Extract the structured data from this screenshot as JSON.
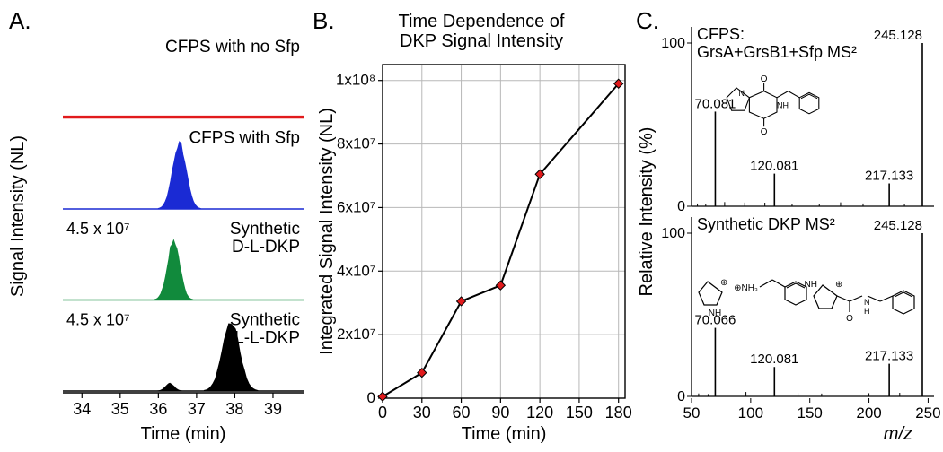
{
  "panelA": {
    "letter": "A.",
    "ylabel": "Signal Intensity (NL)",
    "xlabel": "Time (min)",
    "xlim": [
      33.5,
      39.8
    ],
    "xticks": [
      34,
      35,
      36,
      37,
      38,
      39
    ],
    "traces": [
      {
        "label": "CFPS with no Sfp",
        "scale_text": "",
        "color": "#e11a1c",
        "fill": false,
        "peak_center": null,
        "peak_width": 0,
        "peak_height": 0,
        "points": [
          [
            33.5,
            0.02
          ],
          [
            39.8,
            0.02
          ]
        ]
      },
      {
        "label": "CFPS with Sfp",
        "scale_text": "",
        "color": "#1a2ad4",
        "fill": true,
        "peak_center": 36.55,
        "peak_width": 0.55,
        "peak_height": 0.88
      },
      {
        "label": "Synthetic D-L-DKP",
        "scale_text": "4.5 x 10⁷",
        "color": "#118a3c",
        "fill": true,
        "peak_center": 36.4,
        "peak_width": 0.5,
        "peak_height": 0.78
      },
      {
        "label": "Synthetic L-L-DKP",
        "scale_text": "4.5 x 10⁷",
        "color": "#000000",
        "fill": true,
        "peak_center": 37.9,
        "peak_width": 0.7,
        "peak_height": 0.92,
        "minor_peak": {
          "center": 36.3,
          "width": 0.35,
          "height": 0.1
        }
      }
    ]
  },
  "panelB": {
    "letter": "B.",
    "title_line1": "Time Dependence of",
    "title_line2": "DKP Signal Intensity",
    "ylabel": "Integrated Signal Intensity (NL)",
    "xlabel": "Time (min)",
    "xlim": [
      0,
      185
    ],
    "ylim": [
      0,
      105000000.0
    ],
    "xticks": [
      0,
      30,
      60,
      90,
      120,
      150,
      180
    ],
    "yticks": [
      {
        "v": 0,
        "l": "0"
      },
      {
        "v": 20000000.0,
        "l": "2x10⁷"
      },
      {
        "v": 40000000.0,
        "l": "4x10⁷"
      },
      {
        "v": 60000000.0,
        "l": "6x10⁷"
      },
      {
        "v": 80000000.0,
        "l": "8x10⁷"
      },
      {
        "v": 100000000.0,
        "l": "1x10⁸"
      }
    ],
    "grid_color": "#b8b8b8",
    "line_color": "#000000",
    "marker_fill": "#e11a1c",
    "marker_stroke": "#000000",
    "marker_size": 5,
    "data": [
      {
        "x": 0,
        "y": 500000.0
      },
      {
        "x": 30,
        "y": 8000000.0
      },
      {
        "x": 60,
        "y": 30500000.0
      },
      {
        "x": 90,
        "y": 35500000.0
      },
      {
        "x": 120,
        "y": 70500000.0
      },
      {
        "x": 180,
        "y": 99000000.0
      }
    ]
  },
  "panelC": {
    "letter": "C.",
    "ylabel": "Relative Intensity (%)",
    "xlabel_html": "m/z",
    "xlim": [
      50,
      255
    ],
    "ylim": [
      0,
      100
    ],
    "yticks": [
      0,
      100
    ],
    "spectra": [
      {
        "title_line1": "CFPS:",
        "title_line2": "GrsA+GrsB1+Sfp MS²",
        "peaks": [
          {
            "mz": 70.081,
            "int": 58,
            "label": "70.081"
          },
          {
            "mz": 120.081,
            "int": 20,
            "label": "120.081"
          },
          {
            "mz": 217.133,
            "int": 14,
            "label": "217.133"
          },
          {
            "mz": 245.128,
            "int": 100,
            "label": "245.128"
          }
        ],
        "noise": [
          55,
          62,
          78,
          95,
          112,
          135,
          158,
          176,
          195,
          230
        ]
      },
      {
        "title_line1": "Synthetic DKP MS²",
        "title_line2": "",
        "peaks": [
          {
            "mz": 70.066,
            "int": 42,
            "label": "70.066"
          },
          {
            "mz": 120.081,
            "int": 18,
            "label": "120.081"
          },
          {
            "mz": 217.133,
            "int": 20,
            "label": "217.133"
          },
          {
            "mz": 245.128,
            "int": 100,
            "label": "245.128"
          }
        ],
        "noise": [
          56,
          64,
          80,
          96,
          140,
          160,
          200,
          226
        ]
      }
    ],
    "peak_color": "#000000"
  }
}
